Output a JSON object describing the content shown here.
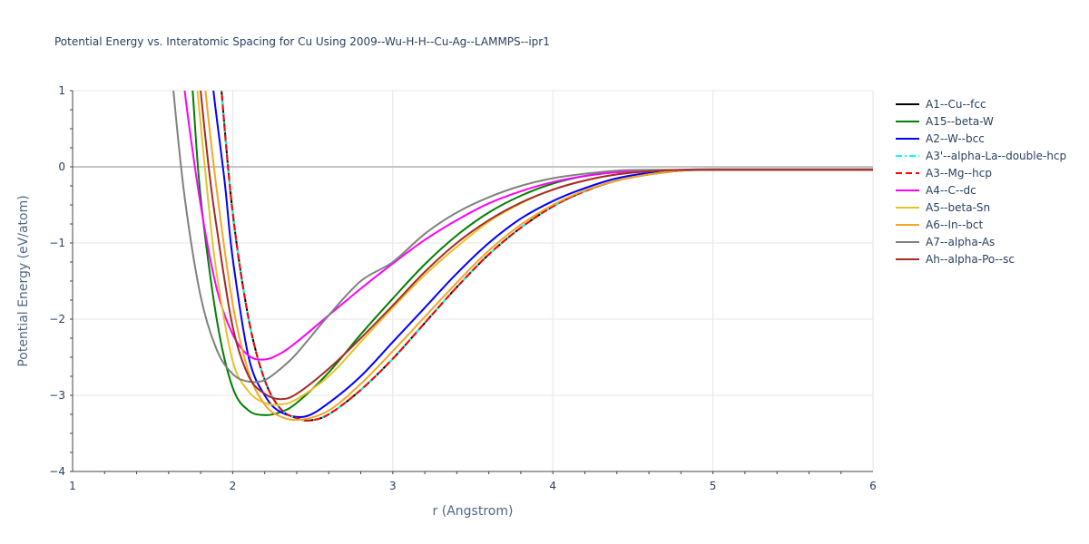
{
  "chart_data": {
    "type": "line",
    "title": "Potential Energy vs. Interatomic Spacing for Cu Using 2009--Wu-H-H--Cu-Ag--LAMMPS--ipr1",
    "xlabel": "r (Angstrom)",
    "ylabel": "Potential Energy (eV/atom)",
    "xlim": [
      1,
      6
    ],
    "ylim": [
      -4,
      1
    ],
    "xticks": [
      "1",
      "2",
      "3",
      "4",
      "5",
      "6"
    ],
    "yticks": [
      "1",
      "0",
      "−1",
      "−2",
      "−3",
      "−4"
    ],
    "grid": true,
    "legend_position": "right",
    "series": [
      {
        "name": "A1--Cu--fcc",
        "color": "#000000",
        "dash": "solid",
        "r": [
          1.93,
          2.0,
          2.1,
          2.2,
          2.3,
          2.4,
          2.48,
          2.6,
          2.8,
          3.0,
          3.2,
          3.4,
          3.6,
          3.8,
          4.0,
          4.2,
          4.4,
          4.6,
          4.8,
          4.9,
          5.0,
          6.0
        ],
        "e": [
          1.0,
          -0.6,
          -2.0,
          -2.8,
          -3.18,
          -3.3,
          -3.33,
          -3.25,
          -2.93,
          -2.52,
          -2.05,
          -1.58,
          -1.15,
          -0.8,
          -0.52,
          -0.32,
          -0.18,
          -0.1,
          -0.05,
          -0.04,
          -0.04,
          -0.04
        ]
      },
      {
        "name": "A15--beta-W",
        "color": "#008000",
        "dash": "solid",
        "r": [
          1.75,
          1.8,
          1.9,
          2.0,
          2.1,
          2.2,
          2.3,
          2.4,
          2.6,
          2.8,
          3.0,
          3.2,
          3.4,
          3.6,
          3.8,
          4.0,
          4.2,
          4.4,
          4.6,
          4.8,
          5.0,
          6.0
        ],
        "e": [
          1.0,
          -0.4,
          -2.0,
          -2.9,
          -3.2,
          -3.26,
          -3.22,
          -3.1,
          -2.7,
          -2.2,
          -1.73,
          -1.28,
          -0.9,
          -0.6,
          -0.38,
          -0.22,
          -0.12,
          -0.07,
          -0.05,
          -0.04,
          -0.04,
          -0.04
        ]
      },
      {
        "name": "A2--W--bcc",
        "color": "#0000ff",
        "dash": "solid",
        "r": [
          1.88,
          1.95,
          2.0,
          2.1,
          2.2,
          2.3,
          2.45,
          2.6,
          2.8,
          3.0,
          3.2,
          3.4,
          3.6,
          3.8,
          4.0,
          4.2,
          4.4,
          4.6,
          4.8,
          5.0,
          6.0
        ],
        "e": [
          1.0,
          -0.2,
          -1.2,
          -2.5,
          -3.0,
          -3.22,
          -3.28,
          -3.1,
          -2.75,
          -2.3,
          -1.85,
          -1.4,
          -1.0,
          -0.68,
          -0.45,
          -0.28,
          -0.15,
          -0.08,
          -0.05,
          -0.04,
          -0.04
        ]
      },
      {
        "name": "A3'--alpha-La--double-hcp",
        "color": "#00ffff",
        "dash": "dashdot",
        "r": [
          1.93,
          2.0,
          2.1,
          2.2,
          2.3,
          2.4,
          2.48,
          2.6,
          2.8,
          3.0,
          3.2,
          3.4,
          3.6,
          3.8,
          4.0,
          4.2,
          4.4,
          4.6,
          4.8,
          4.9,
          5.0,
          6.0
        ],
        "e": [
          1.0,
          -0.6,
          -2.0,
          -2.8,
          -3.18,
          -3.3,
          -3.33,
          -3.25,
          -2.93,
          -2.52,
          -2.05,
          -1.58,
          -1.15,
          -0.8,
          -0.52,
          -0.32,
          -0.18,
          -0.1,
          -0.05,
          -0.04,
          -0.04,
          -0.04
        ]
      },
      {
        "name": "A3--Mg--hcp",
        "color": "#ff0000",
        "dash": "dash",
        "r": [
          1.93,
          2.0,
          2.1,
          2.2,
          2.3,
          2.4,
          2.48,
          2.6,
          2.8,
          3.0,
          3.2,
          3.4,
          3.6,
          3.8,
          4.0,
          4.2,
          4.4,
          4.6,
          4.8,
          4.9,
          5.0,
          6.0
        ],
        "e": [
          1.0,
          -0.6,
          -2.0,
          -2.8,
          -3.18,
          -3.3,
          -3.33,
          -3.25,
          -2.93,
          -2.52,
          -2.05,
          -1.58,
          -1.15,
          -0.8,
          -0.52,
          -0.32,
          -0.18,
          -0.1,
          -0.05,
          -0.04,
          -0.04,
          -0.04
        ]
      },
      {
        "name": "A4--C--dc",
        "color": "#ff00ff",
        "dash": "solid",
        "r": [
          1.7,
          1.8,
          1.9,
          2.0,
          2.1,
          2.2,
          2.3,
          2.4,
          2.6,
          2.8,
          3.0,
          3.2,
          3.4,
          3.6,
          3.8,
          4.0,
          4.2,
          4.4,
          4.6,
          4.8,
          5.0,
          6.0
        ],
        "e": [
          1.0,
          -0.5,
          -1.6,
          -2.2,
          -2.48,
          -2.53,
          -2.45,
          -2.3,
          -1.95,
          -1.6,
          -1.27,
          -0.96,
          -0.7,
          -0.48,
          -0.32,
          -0.2,
          -0.12,
          -0.07,
          -0.05,
          -0.04,
          -0.04,
          -0.04
        ]
      },
      {
        "name": "A5--beta-Sn",
        "color": "#e6c229",
        "dash": "solid",
        "r": [
          1.78,
          1.85,
          1.9,
          2.0,
          2.1,
          2.2,
          2.3,
          2.4,
          2.6,
          2.8,
          3.0,
          3.2,
          3.4,
          3.6,
          3.8,
          4.0,
          4.2,
          4.4,
          4.6,
          4.8,
          5.0,
          6.0
        ],
        "e": [
          1.0,
          -0.5,
          -1.4,
          -2.55,
          -2.95,
          -3.1,
          -3.12,
          -3.05,
          -2.75,
          -2.3,
          -1.85,
          -1.42,
          -1.05,
          -0.72,
          -0.48,
          -0.3,
          -0.18,
          -0.1,
          -0.06,
          -0.04,
          -0.04,
          -0.04
        ]
      },
      {
        "name": "A6--In--bct",
        "color": "#f5a623",
        "dash": "solid",
        "r": [
          1.83,
          1.9,
          2.0,
          2.1,
          2.2,
          2.3,
          2.42,
          2.6,
          2.8,
          3.0,
          3.2,
          3.4,
          3.6,
          3.8,
          4.0,
          4.2,
          4.4,
          4.6,
          4.8,
          5.0,
          6.0
        ],
        "e": [
          1.0,
          -0.3,
          -1.8,
          -2.7,
          -3.12,
          -3.28,
          -3.32,
          -3.2,
          -2.85,
          -2.42,
          -1.97,
          -1.52,
          -1.1,
          -0.76,
          -0.5,
          -0.31,
          -0.18,
          -0.1,
          -0.05,
          -0.04,
          -0.04
        ]
      },
      {
        "name": "A7--alpha-As",
        "color": "#808080",
        "dash": "solid",
        "r": [
          1.63,
          1.7,
          1.8,
          1.9,
          2.0,
          2.1,
          2.2,
          2.3,
          2.4,
          2.6,
          2.8,
          3.0,
          3.2,
          3.4,
          3.6,
          3.8,
          4.0,
          4.2,
          4.4,
          4.6,
          4.8,
          5.0,
          6.0
        ],
        "e": [
          1.0,
          -0.4,
          -1.7,
          -2.4,
          -2.72,
          -2.82,
          -2.8,
          -2.65,
          -2.45,
          -1.95,
          -1.5,
          -1.25,
          -0.88,
          -0.6,
          -0.4,
          -0.25,
          -0.15,
          -0.09,
          -0.05,
          -0.04,
          -0.04,
          -0.03,
          -0.03
        ]
      },
      {
        "name": "Ah--alpha-Po--sc",
        "color": "#a52a2a",
        "dash": "solid",
        "r": [
          1.8,
          1.85,
          1.9,
          2.0,
          2.1,
          2.2,
          2.3,
          2.4,
          2.6,
          2.8,
          3.0,
          3.2,
          3.4,
          3.6,
          3.8,
          4.0,
          4.2,
          4.4,
          4.6,
          4.8,
          5.0,
          6.0
        ],
        "e": [
          1.0,
          0.0,
          -0.8,
          -2.1,
          -2.75,
          -2.98,
          -3.05,
          -2.98,
          -2.65,
          -2.25,
          -1.82,
          -1.38,
          -1.0,
          -0.7,
          -0.47,
          -0.3,
          -0.18,
          -0.1,
          -0.06,
          -0.04,
          -0.04,
          -0.04
        ]
      }
    ]
  }
}
